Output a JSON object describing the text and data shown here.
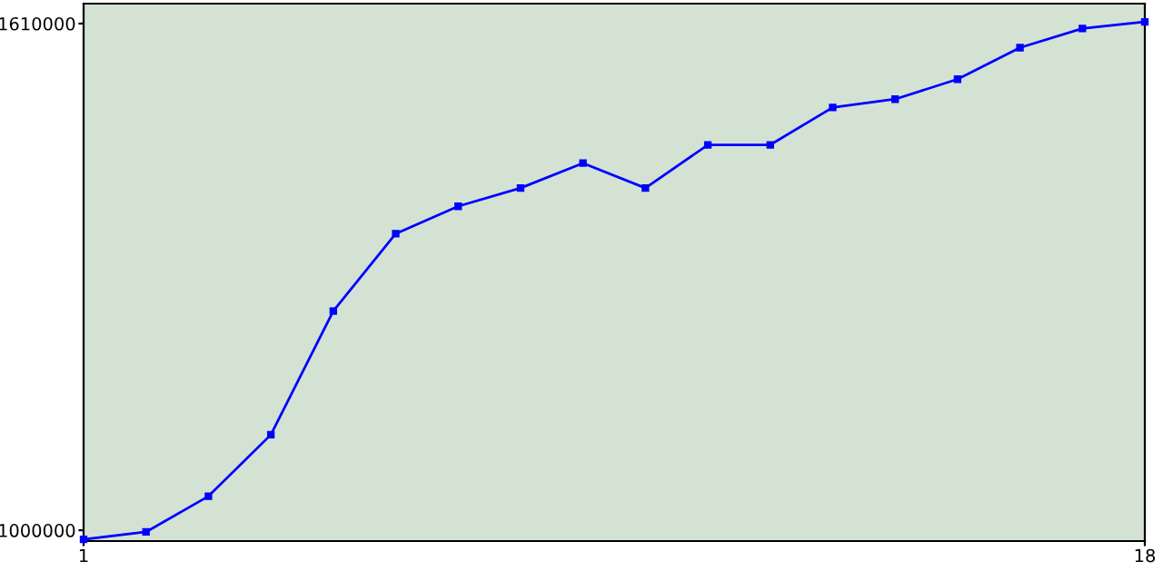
{
  "chart_data": {
    "type": "line",
    "x": [
      1,
      2,
      3,
      4,
      5,
      6,
      7,
      8,
      9,
      10,
      11,
      12,
      13,
      14,
      15,
      16,
      17,
      18
    ],
    "series": [
      {
        "color": "#0000ff",
        "values": [
          989000,
          998000,
          1041000,
          1115000,
          1264000,
          1357000,
          1390000,
          1412000,
          1442000,
          1412000,
          1464000,
          1464000,
          1509000,
          1519000,
          1543000,
          1581000,
          1604000,
          1612000
        ]
      }
    ],
    "xlim": [
      1,
      18
    ],
    "xticks": [
      1,
      18
    ],
    "ylim": [
      987000,
      1634000
    ],
    "yticks": [
      1000000,
      1610000
    ],
    "grid": false,
    "legend": false,
    "marker": "square",
    "line_style": "solid"
  }
}
